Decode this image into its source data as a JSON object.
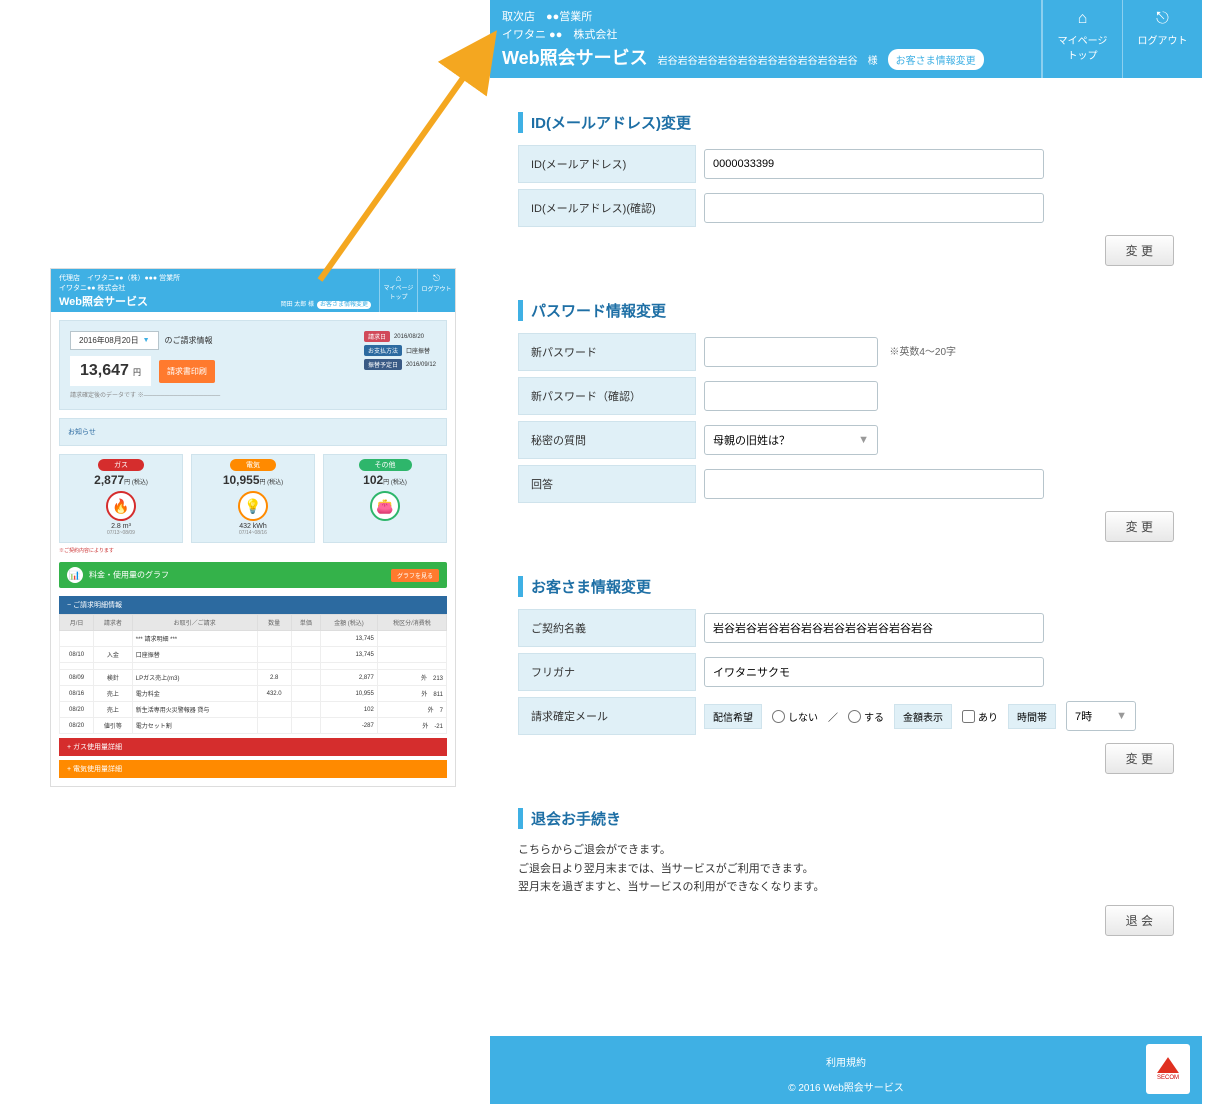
{
  "colors": {
    "primary": "#3fb0e4",
    "accentOrange": "#ff7a2e",
    "accentRed": "#d52d2d",
    "accentGreen": "#2eb66b",
    "panelBg": "#e0f0f7"
  },
  "main": {
    "header": {
      "line1": "取次店　●●営業所",
      "line2": "イワタニ ●●　株式会社",
      "service": "Web照会サービス",
      "customer": "岩谷岩谷岩谷岩谷岩谷岩谷岩谷岩谷岩谷岩谷　様",
      "infoChangeBtn": "お客さま情報変更",
      "nav": [
        {
          "icon": "⌂",
          "label": "マイページ\nトップ"
        },
        {
          "icon": "⎋",
          "label": "ログアウト"
        }
      ]
    },
    "sections": {
      "idChange": {
        "title": "ID(メールアドレス)変更",
        "rows": [
          {
            "label": "ID(メールアドレス)",
            "value": "0000033399"
          },
          {
            "label": "ID(メールアドレス)(確認)",
            "value": ""
          }
        ],
        "button": "変 更"
      },
      "pwChange": {
        "title": "パスワード情報変更",
        "rows": [
          {
            "label": "新パスワード",
            "value": "",
            "hint": "※英数4～20字"
          },
          {
            "label": "新パスワード（確認）",
            "value": "",
            "width": "short"
          },
          {
            "label": "秘密の質問",
            "select": "母親の旧姓は？"
          },
          {
            "label": "回答",
            "value": ""
          }
        ],
        "button": "変 更"
      },
      "custChange": {
        "title": "お客さま情報変更",
        "rows": [
          {
            "label": "ご契約名義",
            "value": "岩谷岩谷岩谷岩谷岩谷岩谷岩谷岩谷岩谷岩谷"
          },
          {
            "label": "フリガナ",
            "value": "イワタニサクモ"
          }
        ],
        "mailRow": {
          "label": "請求確定メール",
          "deliveryTag": "配信希望",
          "opt1": "しない",
          "opt2": "する",
          "amountTag": "金額表示",
          "amountOpt": "あり",
          "timeTag": "時間帯",
          "timeSelect": "7時"
        },
        "button": "変 更"
      },
      "withdraw": {
        "title": "退会お手続き",
        "line1": "こちらからご退会ができます。",
        "line2": "ご退会日より翌月末までは、当サービスがご利用できます。",
        "line3": "翌月末を過ぎますと、当サービスの利用ができなくなります。",
        "button": "退 会"
      }
    },
    "footer": {
      "terms": "利用規約",
      "copyright": "© 2016 Web照会サービス",
      "sealText": "SECOM"
    }
  },
  "thumb": {
    "header": {
      "line1": "代理店　イワタニ●●（株）●●● 営業所",
      "line2": "イワタニ●● 株式会社",
      "service": "Web照会サービス",
      "right": "岡田 太郎 様",
      "rightChip": "お客さま情報変更",
      "nav": [
        {
          "icon": "⌂",
          "label": "マイページ\nトップ"
        },
        {
          "icon": "⎋",
          "label": "ログアウト"
        }
      ]
    },
    "bill": {
      "dateLabel": "2016年08月20日",
      "infoText": "のご請求情報",
      "amount": "13,647",
      "yen": "円",
      "tax": "(税込)",
      "printBtn": "請求書印刷",
      "note": "請求確定後のデータです ※──────────────────",
      "badges": [
        {
          "k": "請求日",
          "v": "2016/08/20",
          "cls": "red"
        },
        {
          "k": "お支払方法",
          "v": "口座振替",
          "cls": "blue"
        },
        {
          "k": "振替予定日",
          "v": "2016/09/12",
          "cls": "navy"
        }
      ]
    },
    "notice": "お知らせ",
    "cards": [
      {
        "pill": "ガス",
        "pillCls": "red",
        "amt": "2,877",
        "unit": "円 (税込)",
        "icon": "🔥",
        "iconCls": "red",
        "sub1": "2.8 m³",
        "sub2": "07/13~08/09"
      },
      {
        "pill": "電気",
        "pillCls": "orange",
        "amt": "10,955",
        "unit": "円 (税込)",
        "icon": "💡",
        "iconCls": "orange",
        "sub1": "432 kWh",
        "sub2": "07/14~08/16"
      },
      {
        "pill": "その他",
        "pillCls": "green",
        "amt": "102",
        "unit": "円 (税込)",
        "icon": "👛",
        "iconCls": "green",
        "sub1": "",
        "sub2": ""
      }
    ],
    "cardsFootnote": "※ご契約内容によります",
    "graphBar": {
      "label": "料金・使用量のグラフ",
      "btn": "グラフを見る"
    },
    "detail": {
      "title": "ご請求明細情報",
      "headers": [
        "月/日",
        "請求者",
        "お取引／ご請求",
        "数量",
        "単価",
        "金額 (税込)",
        "税区分/消費税"
      ],
      "rows": [
        [
          "",
          "",
          "*** 請求明細 ***",
          "",
          "",
          "13,745",
          ""
        ],
        [
          "08/10",
          "入金",
          "口座振替",
          "",
          "",
          "13,745",
          ""
        ],
        [
          "",
          "",
          "",
          "",
          "",
          "",
          ""
        ],
        [
          "08/09",
          "検針",
          "LPガス売上(m3)",
          "2.8",
          "",
          "2,877",
          "外　213"
        ],
        [
          "08/16",
          "売上",
          "電力料金",
          "432.0",
          "",
          "10,955",
          "外　811"
        ],
        [
          "08/20",
          "売上",
          "新生活専用火災警報器 貸与",
          "",
          "",
          "102",
          "外　7"
        ],
        [
          "08/20",
          "値引等",
          "電力セット割",
          "",
          "",
          "-287",
          "外　-21"
        ]
      ],
      "accordions": [
        {
          "cls": "red",
          "label": "ガス使用量詳細"
        },
        {
          "cls": "orange",
          "label": "電気使用量詳細"
        }
      ]
    }
  },
  "arrow": {
    "color": "#f4a720"
  }
}
